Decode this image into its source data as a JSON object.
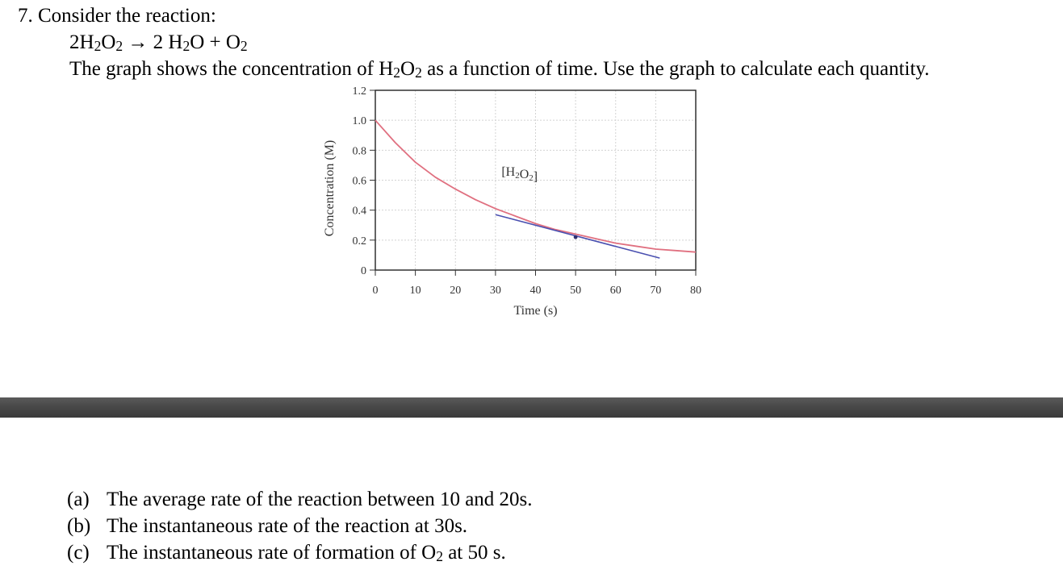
{
  "question": {
    "heading": "7. Consider the reaction:",
    "equation": "2H2O2 → 2 H2O + O2",
    "prompt": "The graph shows the concentration of H2O2 as a function of time. Use the graph to calculate each quantity."
  },
  "chart_data": {
    "type": "line",
    "xlabel": "Time (s)",
    "ylabel": "Concentration (M)",
    "xlim": [
      0,
      80
    ],
    "ylim": [
      0,
      1.2
    ],
    "xticks": [
      0,
      10,
      20,
      30,
      40,
      50,
      60,
      70,
      80
    ],
    "yticks": [
      0,
      0.2,
      0.4,
      0.6,
      0.8,
      1.0,
      1.2
    ],
    "ytick_labels": [
      "0",
      "0.2",
      "0.4",
      "0.6",
      "0.8",
      "1.0",
      "1.2"
    ],
    "grid": true,
    "series": [
      {
        "name": "[H2O2]",
        "color": "#e07080",
        "x": [
          0,
          5,
          10,
          15,
          20,
          25,
          30,
          35,
          40,
          45,
          50,
          55,
          60,
          65,
          70,
          75,
          80
        ],
        "y": [
          1.0,
          0.85,
          0.72,
          0.62,
          0.54,
          0.47,
          0.41,
          0.36,
          0.31,
          0.27,
          0.24,
          0.21,
          0.18,
          0.16,
          0.14,
          0.13,
          0.12
        ]
      }
    ],
    "tangent": {
      "color": "#4a50b0",
      "x": [
        30,
        71
      ],
      "y": [
        0.37,
        0.08
      ],
      "point": [
        50,
        0.22
      ]
    },
    "series_label": {
      "text": "[H2O2]",
      "x": 31.5,
      "y": 0.63
    }
  },
  "parts": [
    {
      "label": "(a)",
      "text": "The average rate of the reaction between 10 and 20s."
    },
    {
      "label": "(b)",
      "text": "The instantaneous rate of the reaction at 30s."
    },
    {
      "label": "(c)",
      "text": "The instantaneous rate of formation of O2 at 50 s."
    }
  ]
}
